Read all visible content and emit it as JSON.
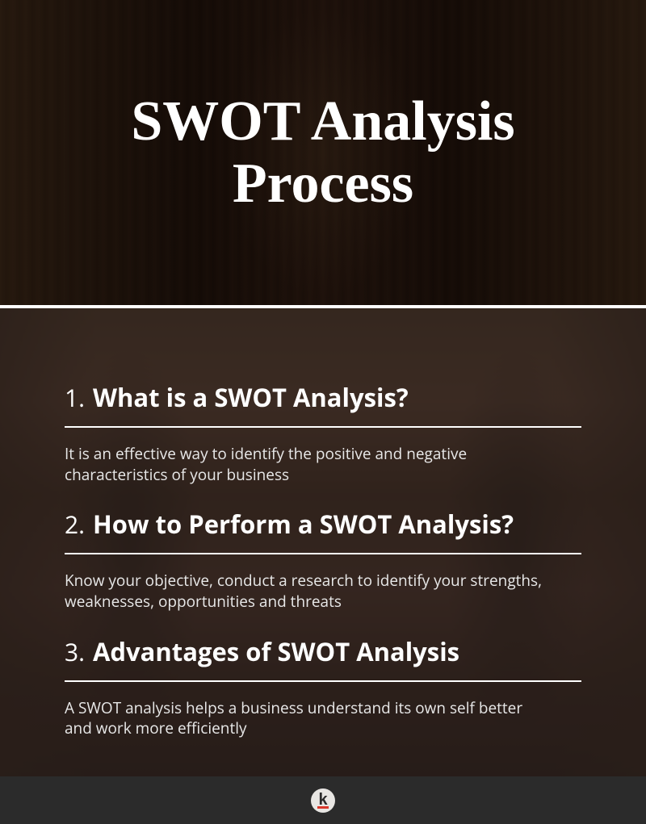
{
  "hero": {
    "title": "SWOT Analysis Process",
    "title_color": "#ffffff",
    "title_fontsize": 70,
    "title_font": "Georgia, serif",
    "overlay_color": "rgba(0,0,0,0.35)",
    "bg_gradient": [
      "#3d2817",
      "#2a1a0f",
      "#1a0d08",
      "#2b1810"
    ]
  },
  "content": {
    "overlay_color": "rgba(20,20,20,0.72)",
    "bg_gradient": [
      "#8b5a3c",
      "#a0664a",
      "#7a4a32",
      "#6b3f2e"
    ],
    "text_color": "#ffffff",
    "body_color": "#e8e8e8",
    "divider_color": "#ffffff",
    "heading_fontsize": 31,
    "number_fontsize": 30,
    "body_fontsize": 19,
    "sections": [
      {
        "number": "1.",
        "title": "What is a SWOT Analysis?",
        "body": "It is an effective way to identify the positive and negative characteristics of your business"
      },
      {
        "number": "2.",
        "title": "How to Perform a SWOT Analysis?",
        "body": "Know your objective, conduct a research to identify your strengths, weaknesses, opportunities and threats"
      },
      {
        "number": "3.",
        "title": "Advantages of SWOT Analysis",
        "body": "A SWOT analysis helps a business understand its own self better and work more efficiently"
      }
    ]
  },
  "footer": {
    "bg_color": "#2b2b2b",
    "logo_bg": "#e8e6e3",
    "logo_letter": "k",
    "logo_letter_color": "#2b2b2b",
    "logo_accent": "#d9372b"
  }
}
